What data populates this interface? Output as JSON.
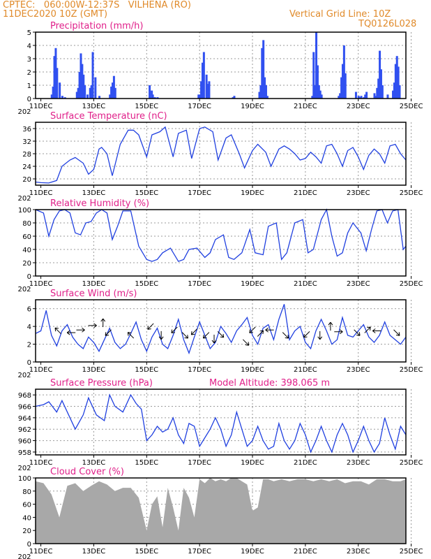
{
  "header": {
    "line1": "CPTEC:   060:00W-12:37S   VILHENA (RO)",
    "line2": "11DEC2020 10Z (GMT)",
    "grid_note": "Vertical Grid Line: 10Z",
    "code": "TQ0126L028"
  },
  "x_labels": [
    "11DEC",
    "13DEC",
    "15DEC",
    "17DEC",
    "19DEC",
    "21DEC",
    "23DEC",
    "25DEC"
  ],
  "x_sublabel": "202",
  "colors": {
    "line": "#2040e0",
    "bar": "#3050f0",
    "cloud": "#a8a8a8",
    "title": "#e0208a",
    "header": "#e08a2a"
  },
  "chart_data": [
    {
      "type": "bar",
      "title": "Precipitation (mm/h)",
      "ylim": [
        0,
        5
      ],
      "yticks": [
        "0",
        "1",
        "2",
        "3",
        "4",
        "5"
      ],
      "series": [
        {
          "x": [
            0.6,
            0.65,
            0.7,
            0.75,
            0.8,
            0.9,
            1.0,
            1.1,
            1.55,
            1.6,
            1.65,
            1.7,
            1.75,
            1.8,
            1.85,
            1.95,
            2.05,
            2.1,
            2.15,
            2.25,
            2.4,
            2.8,
            2.85,
            2.9,
            2.95,
            3.0,
            4.3,
            4.38,
            4.42,
            4.5,
            4.6,
            6.15,
            6.2,
            6.25,
            6.3,
            6.35,
            6.45,
            6.5,
            6.55,
            7.45,
            7.5,
            8.45,
            8.5,
            8.55,
            8.6,
            8.65,
            8.7,
            8.75,
            10.45,
            10.5,
            10.55,
            10.6,
            10.65,
            10.7,
            10.75,
            10.8,
            11.45,
            11.5,
            11.55,
            11.6,
            11.65,
            11.7,
            12.1,
            12.2,
            12.25,
            12.3,
            12.4,
            12.45,
            12.5,
            12.8,
            12.85,
            12.9,
            12.95,
            13.0,
            13.05,
            13.1,
            13.3,
            13.5,
            13.55,
            13.6,
            13.65,
            13.7,
            13.75
          ],
          "values": [
            0.3,
            0.9,
            3.2,
            3.8,
            2.3,
            1.2,
            0.2,
            0.1,
            0.5,
            0.8,
            2.0,
            3.4,
            2.6,
            1.8,
            1.0,
            0.3,
            0.8,
            1.0,
            3.5,
            1.6,
            0.2,
            0.3,
            0.9,
            1.2,
            1.7,
            0.8,
            1.0,
            0.6,
            0.3,
            0.1,
            0.1,
            0.3,
            0.3,
            1.3,
            2.7,
            3.5,
            1.8,
            1.1,
            1.3,
            0.1,
            0.2,
            0.5,
            1.0,
            3.8,
            4.4,
            1.6,
            1.0,
            0.2,
            0.2,
            3.5,
            1.0,
            5.0,
            2.5,
            1.0,
            0.6,
            0.3,
            0.2,
            0.4,
            1.6,
            2.6,
            4.0,
            1.9,
            0.5,
            0.2,
            0.1,
            0.2,
            0.1,
            0.3,
            0.5,
            0.4,
            0.2,
            0.8,
            1.5,
            3.6,
            2.2,
            1.0,
            0.3,
            0.6,
            1.2,
            2.6,
            3.2,
            2.4,
            1.0
          ]
        }
      ]
    },
    {
      "type": "line",
      "title": "Surface Temperature (nC)",
      "ylim": [
        18,
        38
      ],
      "yticks": [
        "20",
        "24",
        "28",
        "32",
        "36"
      ],
      "series": [
        {
          "x": [
            0,
            0.2,
            0.5,
            0.8,
            1.0,
            1.3,
            1.5,
            1.8,
            2.0,
            2.2,
            2.4,
            2.5,
            2.7,
            2.9,
            3.2,
            3.5,
            3.7,
            3.9,
            4.2,
            4.4,
            4.7,
            4.9,
            5.2,
            5.4,
            5.7,
            5.9,
            6.2,
            6.4,
            6.7,
            6.9,
            7.2,
            7.4,
            7.7,
            7.9,
            8.2,
            8.4,
            8.7,
            8.9,
            9.2,
            9.4,
            9.6,
            9.8,
            10.0,
            10.2,
            10.4,
            10.6,
            10.8,
            11.0,
            11.2,
            11.4,
            11.6,
            11.8,
            12.0,
            12.2,
            12.4,
            12.6,
            12.8,
            13.0,
            13.2,
            13.4,
            13.6,
            13.8,
            14.0
          ],
          "values": [
            19,
            18.8,
            18.7,
            19.5,
            24,
            26,
            26.8,
            25,
            21.5,
            23,
            29.5,
            30,
            28,
            21,
            31,
            35.5,
            35.5,
            34,
            27,
            34,
            35,
            36.5,
            27,
            34.5,
            35.5,
            26.5,
            36,
            36.5,
            35,
            26,
            33,
            34,
            28,
            23.5,
            29,
            31,
            28.5,
            24,
            29.5,
            30.5,
            29.5,
            28,
            26,
            26.5,
            28.5,
            27,
            25,
            30.5,
            31,
            28,
            24,
            29,
            30,
            27,
            23,
            27.5,
            29.5,
            28,
            25,
            30.5,
            31,
            28,
            26
          ]
        }
      ]
    },
    {
      "type": "line",
      "title": "Relative Humidity (%)",
      "ylim": [
        0,
        100
      ],
      "yticks": [
        "0",
        "20",
        "40",
        "60",
        "80",
        "100"
      ],
      "series": [
        {
          "x": [
            0,
            0.3,
            0.5,
            0.7,
            0.9,
            1.1,
            1.3,
            1.5,
            1.7,
            1.9,
            2.1,
            2.3,
            2.5,
            2.7,
            2.9,
            3.1,
            3.3,
            3.6,
            3.9,
            4.2,
            4.4,
            4.6,
            4.8,
            5.1,
            5.4,
            5.6,
            5.8,
            6.1,
            6.4,
            6.6,
            6.8,
            7.1,
            7.3,
            7.5,
            7.8,
            8.1,
            8.3,
            8.6,
            8.8,
            9.1,
            9.3,
            9.5,
            9.8,
            10.1,
            10.3,
            10.5,
            10.8,
            11.0,
            11.2,
            11.4,
            11.6,
            11.8,
            12.0,
            12.3,
            12.5,
            12.7,
            12.9,
            13.1,
            13.3,
            13.5,
            13.7,
            13.9,
            14.0
          ],
          "values": [
            100,
            95,
            60,
            85,
            98,
            100,
            95,
            65,
            62,
            80,
            82,
            95,
            100,
            95,
            55,
            75,
            98,
            98,
            45,
            25,
            22,
            25,
            35,
            42,
            22,
            25,
            40,
            42,
            28,
            35,
            55,
            62,
            28,
            25,
            35,
            70,
            35,
            32,
            75,
            80,
            25,
            35,
            80,
            85,
            35,
            40,
            85,
            100,
            60,
            30,
            35,
            65,
            80,
            65,
            38,
            70,
            98,
            100,
            80,
            98,
            100,
            40,
            45
          ]
        }
      ]
    },
    {
      "type": "line",
      "title": "Surface Wind (m/s)",
      "ylim": [
        0,
        7
      ],
      "yticks": [
        "0",
        "2",
        "4",
        "6"
      ],
      "series": [
        {
          "x": [
            0,
            0.2,
            0.4,
            0.6,
            0.8,
            1.0,
            1.2,
            1.4,
            1.6,
            1.8,
            2.0,
            2.2,
            2.4,
            2.6,
            2.8,
            3.0,
            3.2,
            3.4,
            3.6,
            3.8,
            4.0,
            4.2,
            4.4,
            4.6,
            4.8,
            5.0,
            5.2,
            5.4,
            5.6,
            5.8,
            6.0,
            6.2,
            6.4,
            6.6,
            6.8,
            7.0,
            7.2,
            7.4,
            7.6,
            7.8,
            8.0,
            8.2,
            8.4,
            8.6,
            8.8,
            9.0,
            9.2,
            9.4,
            9.6,
            9.8,
            10.0,
            10.2,
            10.4,
            10.6,
            10.8,
            11.0,
            11.2,
            11.4,
            11.6,
            11.8,
            12.0,
            12.2,
            12.4,
            12.6,
            12.8,
            13.0,
            13.2,
            13.4,
            13.6,
            13.8,
            14.0
          ],
          "values": [
            3.2,
            3.5,
            5.8,
            3.0,
            1.8,
            3.5,
            4.2,
            2.8,
            2.0,
            1.5,
            2.8,
            2.2,
            1.2,
            2.5,
            3.8,
            2.2,
            1.5,
            2.0,
            3.2,
            4.5,
            2.5,
            1.2,
            2.8,
            3.8,
            2.0,
            1.5,
            3.0,
            4.8,
            2.5,
            1.0,
            2.8,
            4.5,
            3.0,
            1.5,
            2.2,
            4.0,
            3.2,
            2.2,
            3.5,
            4.2,
            5.0,
            3.0,
            2.0,
            3.8,
            4.2,
            2.5,
            4.8,
            6.5,
            2.5,
            3.5,
            4.0,
            2.2,
            1.5,
            3.5,
            4.8,
            3.5,
            2.0,
            2.5,
            5.0,
            3.0,
            2.8,
            3.5,
            4.2,
            2.8,
            2.2,
            3.0,
            4.5,
            3.0,
            2.5,
            2.0,
            2.8
          ]
        }
      ],
      "arrows": [
        {
          "x": 0.85,
          "y": 3.5,
          "dir": "left-up"
        },
        {
          "x": 1.35,
          "y": 3.3,
          "dir": "left"
        },
        {
          "x": 1.7,
          "y": 3.6,
          "dir": "right"
        },
        {
          "x": 2.15,
          "y": 4.1,
          "dir": "right"
        },
        {
          "x": 2.55,
          "y": 4.4,
          "dir": "up"
        },
        {
          "x": 2.75,
          "y": 3.3,
          "dir": "down-left"
        },
        {
          "x": 3.6,
          "y": 3.0,
          "dir": "left-up"
        },
        {
          "x": 4.35,
          "y": 4.0,
          "dir": "left-down"
        },
        {
          "x": 4.75,
          "y": 3.0,
          "dir": "down"
        },
        {
          "x": 5.25,
          "y": 3.6,
          "dir": "down-left"
        },
        {
          "x": 5.65,
          "y": 3.0,
          "dir": "down-right"
        },
        {
          "x": 6.0,
          "y": 3.4,
          "dir": "down-left"
        },
        {
          "x": 6.45,
          "y": 3.0,
          "dir": "left-down"
        },
        {
          "x": 6.75,
          "y": 2.6,
          "dir": "down"
        },
        {
          "x": 7.0,
          "y": 3.1,
          "dir": "right-down"
        },
        {
          "x": 7.95,
          "y": 2.2,
          "dir": "down-right"
        },
        {
          "x": 8.2,
          "y": 3.6,
          "dir": "down-left"
        },
        {
          "x": 8.5,
          "y": 3.2,
          "dir": "right-up"
        },
        {
          "x": 8.85,
          "y": 3.6,
          "dir": "left"
        },
        {
          "x": 9.45,
          "y": 3.0,
          "dir": "down-right"
        },
        {
          "x": 10.25,
          "y": 3.1,
          "dir": "left-down"
        },
        {
          "x": 10.75,
          "y": 3.0,
          "dir": "down"
        },
        {
          "x": 11.15,
          "y": 4.0,
          "dir": "up"
        },
        {
          "x": 11.45,
          "y": 3.4,
          "dir": "right"
        },
        {
          "x": 12.15,
          "y": 3.3,
          "dir": "down-right"
        },
        {
          "x": 12.55,
          "y": 3.6,
          "dir": "right-up"
        },
        {
          "x": 12.9,
          "y": 3.5,
          "dir": "left"
        },
        {
          "x": 13.65,
          "y": 3.3,
          "dir": "right-down"
        }
      ]
    },
    {
      "type": "line",
      "title": "Surface Pressure (hPa)",
      "subtitle": "Model Altitude: 398.065 m",
      "ylim": [
        957.5,
        969
      ],
      "yticks": [
        "958",
        "960",
        "962",
        "964",
        "966",
        "968"
      ],
      "series": [
        {
          "x": [
            0,
            0.3,
            0.5,
            0.8,
            1.0,
            1.2,
            1.5,
            1.8,
            2.0,
            2.3,
            2.6,
            2.8,
            3.0,
            3.3,
            3.6,
            3.8,
            4.0,
            4.2,
            4.4,
            4.6,
            4.8,
            5.0,
            5.2,
            5.4,
            5.6,
            5.8,
            6.0,
            6.2,
            6.4,
            6.6,
            6.8,
            7.0,
            7.2,
            7.4,
            7.6,
            7.8,
            8.0,
            8.2,
            8.4,
            8.6,
            8.8,
            9.0,
            9.2,
            9.4,
            9.6,
            9.8,
            10.0,
            10.2,
            10.4,
            10.6,
            10.8,
            11.0,
            11.2,
            11.4,
            11.6,
            11.8,
            12.0,
            12.2,
            12.4,
            12.6,
            12.8,
            13.0,
            13.2,
            13.4,
            13.6,
            13.8,
            14.0
          ],
          "values": [
            966,
            966.3,
            966.8,
            965,
            967,
            965,
            962,
            964.5,
            967.5,
            964.5,
            963.5,
            968,
            966,
            965,
            968,
            966.5,
            965.5,
            960,
            961,
            962.5,
            961.5,
            962,
            964,
            961,
            959.5,
            963,
            962.5,
            959,
            960.5,
            962,
            964,
            962,
            959,
            961,
            965,
            962,
            959,
            960,
            962.5,
            960,
            958.5,
            959,
            963,
            960,
            958.5,
            960,
            963,
            961,
            958,
            960,
            962.5,
            960,
            958,
            961,
            963,
            961,
            958,
            960,
            962.5,
            960,
            958,
            959.5,
            964,
            961,
            958.5,
            962.5,
            961
          ]
        }
      ]
    },
    {
      "type": "area",
      "title": "Cloud Cover (%)",
      "ylim": [
        0,
        100
      ],
      "yticks": [
        "0",
        "20",
        "40",
        "60",
        "80",
        "100"
      ],
      "series": [
        {
          "x": [
            0,
            0.3,
            0.6,
            0.9,
            1.2,
            1.5,
            1.8,
            2.1,
            2.4,
            2.7,
            3.0,
            3.3,
            3.6,
            3.9,
            4.2,
            4.4,
            4.6,
            4.8,
            5.0,
            5.2,
            5.4,
            5.6,
            5.8,
            6.0,
            6.2,
            6.4,
            6.6,
            6.8,
            7.0,
            7.2,
            7.4,
            7.6,
            7.8,
            8.0,
            8.2,
            8.4,
            8.6,
            8.8,
            9.0,
            9.3,
            9.6,
            9.9,
            10.2,
            10.5,
            10.8,
            11.1,
            11.4,
            11.7,
            12.0,
            12.3,
            12.6,
            12.9,
            13.2,
            13.5,
            13.8,
            14.0
          ],
          "values": [
            95,
            92,
            75,
            40,
            88,
            92,
            80,
            88,
            95,
            90,
            80,
            85,
            85,
            70,
            20,
            60,
            72,
            25,
            85,
            55,
            20,
            85,
            70,
            40,
            98,
            92,
            100,
            95,
            98,
            95,
            100,
            100,
            95,
            90,
            50,
            55,
            98,
            98,
            95,
            98,
            95,
            98,
            98,
            95,
            98,
            95,
            98,
            92,
            95,
            95,
            90,
            98,
            98,
            95,
            95,
            98
          ]
        }
      ]
    }
  ]
}
